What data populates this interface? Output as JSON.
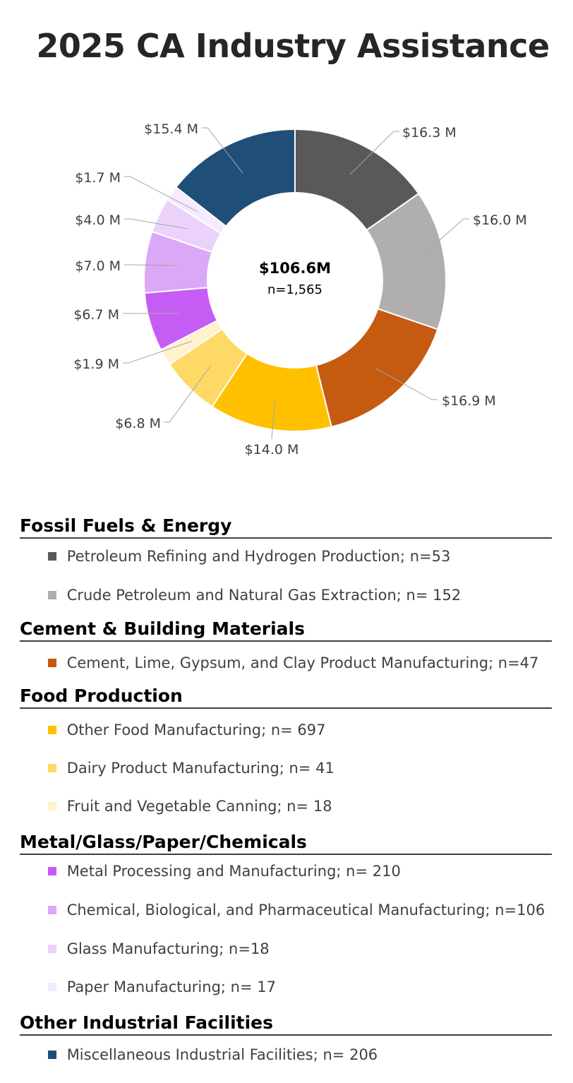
{
  "title": "2025 CA Industry Assistance",
  "chart_data": {
    "type": "pie",
    "variant": "donut",
    "title": "2025 CA Industry Assistance",
    "center": {
      "total": "$106.6M",
      "count": "n=1,565"
    },
    "slices": [
      {
        "label": "$16.3 M",
        "value": 16.3,
        "color": "#595959"
      },
      {
        "label": "$16.0 M",
        "value": 16.0,
        "color": "#b0aeae"
      },
      {
        "label": "$16.9 M",
        "value": 16.9,
        "color": "#c55a11"
      },
      {
        "label": "$14.0 M",
        "value": 14.0,
        "color": "#ffc000"
      },
      {
        "label": "$6.8 M",
        "value": 6.8,
        "color": "#ffd966"
      },
      {
        "label": "$1.9 M",
        "value": 1.9,
        "color": "#fff2cc"
      },
      {
        "label": "$6.7 M",
        "value": 6.7,
        "color": "#c55df5"
      },
      {
        "label": "$7.0 M",
        "value": 7.0,
        "color": "#dba8f7"
      },
      {
        "label": "$4.0 M",
        "value": 4.0,
        "color": "#ebd2fb"
      },
      {
        "label": "$1.7 M",
        "value": 1.7,
        "color": "#f5ebfd"
      },
      {
        "label": "$15.4 M",
        "value": 15.4,
        "color": "#1f4e79"
      }
    ]
  },
  "legend": {
    "groups": [
      {
        "name": "Fossil Fuels & Energy",
        "items": [
          {
            "text": "Petroleum Refining and Hydrogen Production; n=53",
            "color": "#595959"
          },
          {
            "text": "Crude Petroleum and Natural Gas Extraction; n= 152",
            "color": "#b0aeae"
          }
        ]
      },
      {
        "name": "Cement & Building Materials",
        "items": [
          {
            "text": "Cement, Lime, Gypsum, and Clay Product Manufacturing; n=47",
            "color": "#c55a11"
          }
        ]
      },
      {
        "name": "Food Production",
        "items": [
          {
            "text": "Other Food Manufacturing; n= 697",
            "color": "#ffc000"
          },
          {
            "text": "Dairy Product Manufacturing; n= 41",
            "color": "#ffd966"
          },
          {
            "text": "Fruit and Vegetable Canning; n= 18",
            "color": "#fff2cc"
          }
        ]
      },
      {
        "name": "Metal/Glass/Paper/Chemicals",
        "items": [
          {
            "text": "Metal Processing and Manufacturing; n= 210",
            "color": "#c55df5"
          },
          {
            "text": "Chemical, Biological, and Pharmaceutical Manufacturing; n=106",
            "color": "#dba8f7"
          },
          {
            "text": "Glass Manufacturing; n=18",
            "color": "#ebd2fb"
          },
          {
            "text": "Paper Manufacturing; n= 17",
            "color": "#f5ebfd"
          }
        ]
      },
      {
        "name": "Other Industrial Facilities",
        "items": [
          {
            "text": "Miscellaneous Industrial Facilities; n= 206",
            "color": "#1f4e79"
          }
        ]
      }
    ]
  }
}
